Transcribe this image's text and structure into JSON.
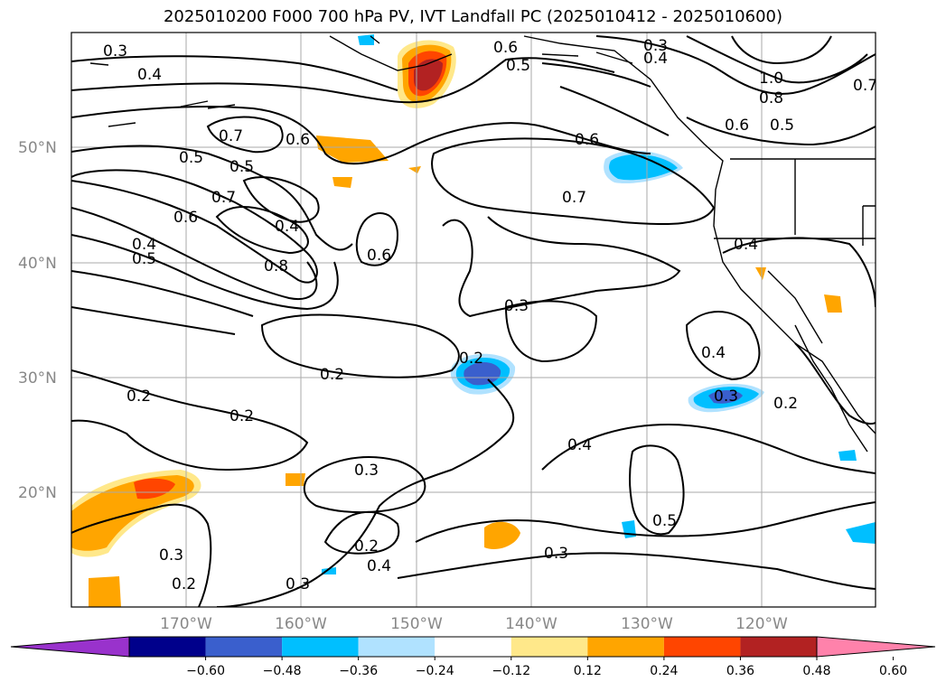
{
  "title": "2025010200 F000 700 hPa PV, IVT Landfall PC (2025010412 - 2025010600)",
  "lat_labels": [
    "50°N",
    "40°N",
    "30°N",
    "20°N"
  ],
  "lon_labels": [
    "170°W",
    "160°W",
    "150°W",
    "140°W",
    "130°W",
    "120°W"
  ],
  "contour_labels": [
    "0.3",
    "0.4",
    "0.6",
    "0.5",
    "0.3",
    "0.4",
    "1.0",
    "0.8",
    "0.7",
    "0.6",
    "0.5",
    "0.7",
    "0.6",
    "0.6",
    "0.5",
    "0.5",
    "0.7",
    "0.7",
    "0.6",
    "0.4",
    "0.4",
    "0.5",
    "0.8",
    "0.6",
    "0.4",
    "0.3",
    "0.4",
    "0.2",
    "0.2",
    "0.2",
    "0.3",
    "0.4",
    "0.5",
    "0.3",
    "0.2",
    "0.2",
    "0.4",
    "0.3",
    "0.2",
    "0.3",
    "0.2",
    "0.3"
  ],
  "colorbar": {
    "colors": [
      "#9932cc",
      "#00008b",
      "#3a5fcd",
      "#00bfff",
      "#b0e2ff",
      "#ffffff",
      "#ffe88a",
      "#ffa500",
      "#ff4500",
      "#b22222",
      "#ff82ab"
    ],
    "ticks": [
      "−0.60",
      "−0.48",
      "−0.36",
      "−0.24",
      "−0.12",
      "0.12",
      "0.24",
      "0.36",
      "0.48",
      "0.60"
    ]
  }
}
